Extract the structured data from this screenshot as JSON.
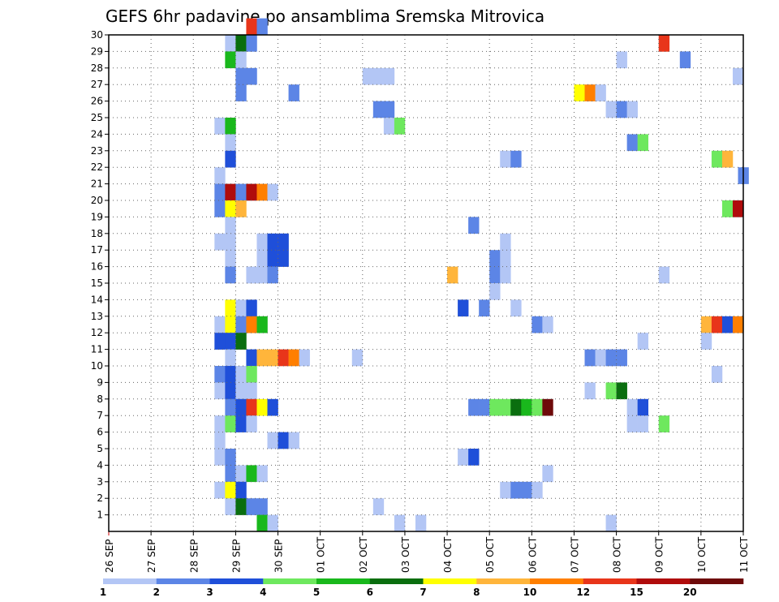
{
  "chart_data": {
    "type": "heatmap",
    "title": "GEFS 6hr padavine po ansamblima Sremska Mitrovica",
    "ylabel": "",
    "xlabel": "",
    "y_ticks": [
      "1",
      "2",
      "3",
      "4",
      "5",
      "6",
      "7",
      "8",
      "9",
      "10",
      "11",
      "12",
      "13",
      "14",
      "15",
      "16",
      "17",
      "18",
      "19",
      "20",
      "21",
      "22",
      "23",
      "24",
      "25",
      "26",
      "27",
      "28",
      "29",
      "30"
    ],
    "ylim": [
      0,
      30
    ],
    "x_ticks": [
      "26 SEP",
      "27 SEP",
      "28 SEP",
      "29 SEP",
      "30 SEP",
      "01 OCT",
      "02 OCT",
      "03 OCT",
      "04 OCT",
      "05 OCT",
      "06 OCT",
      "07 OCT",
      "08 OCT",
      "09 OCT",
      "10 OCT",
      "11 OCT"
    ],
    "x_unit": "6-hour step from 26 SEP 00Z",
    "xlim": [
      0,
      60
    ],
    "grid": true,
    "colorbar": {
      "ticks": [
        "1",
        "2",
        "3",
        "4",
        "5",
        "6",
        "7",
        "8",
        "10",
        "12",
        "15",
        "20"
      ],
      "colors": [
        "#b3c6f5",
        "#5c85e6",
        "#1f4fd9",
        "#6ee85e",
        "#19b81c",
        "#0a6e0f",
        "#ffff00",
        "#ffb53b",
        "#ff7f00",
        "#e8351a",
        "#b00c0c",
        "#6e0a0a"
      ]
    },
    "cells": [
      {
        "m": 30,
        "t": 13,
        "c": "#e8351a"
      },
      {
        "m": 30,
        "t": 14,
        "c": "#5c85e6"
      },
      {
        "m": 29,
        "t": 11,
        "c": "#b3c6f5"
      },
      {
        "m": 29,
        "t": 12,
        "c": "#0a6e0f"
      },
      {
        "m": 29,
        "t": 13,
        "c": "#5c85e6"
      },
      {
        "m": 29,
        "t": 52,
        "c": "#e8351a"
      },
      {
        "m": 28,
        "t": 11,
        "c": "#19b81c"
      },
      {
        "m": 28,
        "t": 12,
        "c": "#b3c6f5"
      },
      {
        "m": 28,
        "t": 48,
        "c": "#b3c6f5"
      },
      {
        "m": 28,
        "t": 54,
        "c": "#5c85e6"
      },
      {
        "m": 27,
        "t": 12,
        "c": "#5c85e6"
      },
      {
        "m": 27,
        "t": 13,
        "c": "#5c85e6"
      },
      {
        "m": 27,
        "t": 24,
        "c": "#b3c6f5"
      },
      {
        "m": 27,
        "t": 25,
        "c": "#b3c6f5"
      },
      {
        "m": 27,
        "t": 26,
        "c": "#b3c6f5"
      },
      {
        "m": 27,
        "t": 59,
        "c": "#b3c6f5"
      },
      {
        "m": 26,
        "t": 12,
        "c": "#5c85e6"
      },
      {
        "m": 26,
        "t": 17,
        "c": "#5c85e6"
      },
      {
        "m": 26,
        "t": 44,
        "c": "#ffff00"
      },
      {
        "m": 26,
        "t": 45,
        "c": "#ff7f00"
      },
      {
        "m": 26,
        "t": 46,
        "c": "#b3c6f5"
      },
      {
        "m": 25,
        "t": 25,
        "c": "#5c85e6"
      },
      {
        "m": 25,
        "t": 26,
        "c": "#5c85e6"
      },
      {
        "m": 25,
        "t": 47,
        "c": "#b3c6f5"
      },
      {
        "m": 25,
        "t": 48,
        "c": "#5c85e6"
      },
      {
        "m": 25,
        "t": 49,
        "c": "#b3c6f5"
      },
      {
        "m": 24,
        "t": 10,
        "c": "#b3c6f5"
      },
      {
        "m": 24,
        "t": 11,
        "c": "#19b81c"
      },
      {
        "m": 24,
        "t": 26,
        "c": "#b3c6f5"
      },
      {
        "m": 24,
        "t": 27,
        "c": "#6ee85e"
      },
      {
        "m": 23,
        "t": 11,
        "c": "#b3c6f5"
      },
      {
        "m": 23,
        "t": 49,
        "c": "#5c85e6"
      },
      {
        "m": 23,
        "t": 50,
        "c": "#6ee85e"
      },
      {
        "m": 22,
        "t": 11,
        "c": "#1f4fd9"
      },
      {
        "m": 22,
        "t": 37,
        "c": "#b3c6f5"
      },
      {
        "m": 22,
        "t": 38,
        "c": "#5c85e6"
      },
      {
        "m": 22,
        "t": 57,
        "c": "#6ee85e"
      },
      {
        "m": 22,
        "t": 58,
        "c": "#ffb53b"
      },
      {
        "m": 21,
        "t": 10,
        "c": "#b3c6f5"
      },
      {
        "m": 21,
        "t": 59.5,
        "c": "#5c85e6"
      },
      {
        "m": 20,
        "t": 10,
        "c": "#5c85e6"
      },
      {
        "m": 20,
        "t": 11,
        "c": "#b00c0c"
      },
      {
        "m": 20,
        "t": 12,
        "c": "#5c85e6"
      },
      {
        "m": 20,
        "t": 13,
        "c": "#b00c0c"
      },
      {
        "m": 20,
        "t": 14,
        "c": "#ff7f00"
      },
      {
        "m": 20,
        "t": 15,
        "c": "#b3c6f5"
      },
      {
        "m": 19,
        "t": 10,
        "c": "#5c85e6"
      },
      {
        "m": 19,
        "t": 11,
        "c": "#ffff00"
      },
      {
        "m": 19,
        "t": 12,
        "c": "#ffb53b"
      },
      {
        "m": 19,
        "t": 58,
        "c": "#6ee85e"
      },
      {
        "m": 19,
        "t": 59,
        "c": "#b00c0c"
      },
      {
        "m": 18,
        "t": 11,
        "c": "#b3c6f5"
      },
      {
        "m": 18,
        "t": 34,
        "c": "#5c85e6"
      },
      {
        "m": 17,
        "t": 10,
        "c": "#b3c6f5"
      },
      {
        "m": 17,
        "t": 11,
        "c": "#b3c6f5"
      },
      {
        "m": 17,
        "t": 14,
        "c": "#b3c6f5"
      },
      {
        "m": 17,
        "t": 15,
        "c": "#1f4fd9"
      },
      {
        "m": 17,
        "t": 16,
        "c": "#1f4fd9"
      },
      {
        "m": 17,
        "t": 37,
        "c": "#b3c6f5"
      },
      {
        "m": 16,
        "t": 11,
        "c": "#b3c6f5"
      },
      {
        "m": 16,
        "t": 14,
        "c": "#b3c6f5"
      },
      {
        "m": 16,
        "t": 15,
        "c": "#1f4fd9"
      },
      {
        "m": 16,
        "t": 16,
        "c": "#1f4fd9"
      },
      {
        "m": 16,
        "t": 36,
        "c": "#5c85e6"
      },
      {
        "m": 16,
        "t": 37,
        "c": "#b3c6f5"
      },
      {
        "m": 15,
        "t": 11,
        "c": "#5c85e6"
      },
      {
        "m": 15,
        "t": 13,
        "c": "#b3c6f5"
      },
      {
        "m": 15,
        "t": 14,
        "c": "#b3c6f5"
      },
      {
        "m": 15,
        "t": 15,
        "c": "#5c85e6"
      },
      {
        "m": 15,
        "t": 32,
        "c": "#ffb53b"
      },
      {
        "m": 15,
        "t": 36,
        "c": "#5c85e6"
      },
      {
        "m": 15,
        "t": 37,
        "c": "#b3c6f5"
      },
      {
        "m": 15,
        "t": 52,
        "c": "#b3c6f5"
      },
      {
        "m": 14,
        "t": 36,
        "c": "#b3c6f5"
      },
      {
        "m": 13,
        "t": 11,
        "c": "#ffff00"
      },
      {
        "m": 13,
        "t": 12,
        "c": "#b3c6f5"
      },
      {
        "m": 13,
        "t": 13,
        "c": "#1f4fd9"
      },
      {
        "m": 13,
        "t": 33,
        "c": "#1f4fd9"
      },
      {
        "m": 13,
        "t": 35,
        "c": "#5c85e6"
      },
      {
        "m": 13,
        "t": 38,
        "c": "#b3c6f5"
      },
      {
        "m": 12,
        "t": 10,
        "c": "#b3c6f5"
      },
      {
        "m": 12,
        "t": 11,
        "c": "#ffff00"
      },
      {
        "m": 12,
        "t": 12,
        "c": "#5c85e6"
      },
      {
        "m": 12,
        "t": 13,
        "c": "#ff7f00"
      },
      {
        "m": 12,
        "t": 14,
        "c": "#19b81c"
      },
      {
        "m": 12,
        "t": 40,
        "c": "#5c85e6"
      },
      {
        "m": 12,
        "t": 41,
        "c": "#b3c6f5"
      },
      {
        "m": 12,
        "t": 56,
        "c": "#ffb53b"
      },
      {
        "m": 12,
        "t": 57,
        "c": "#e8351a"
      },
      {
        "m": 12,
        "t": 58,
        "c": "#1f4fd9"
      },
      {
        "m": 12,
        "t": 59,
        "c": "#ff7f00"
      },
      {
        "m": 11,
        "t": 10,
        "c": "#1f4fd9"
      },
      {
        "m": 11,
        "t": 11,
        "c": "#1f4fd9"
      },
      {
        "m": 11,
        "t": 12,
        "c": "#0a6e0f"
      },
      {
        "m": 11,
        "t": 50,
        "c": "#b3c6f5"
      },
      {
        "m": 11,
        "t": 56,
        "c": "#b3c6f5"
      },
      {
        "m": 10,
        "t": 11,
        "c": "#b3c6f5"
      },
      {
        "m": 10,
        "t": 13,
        "c": "#1f4fd9"
      },
      {
        "m": 10,
        "t": 14,
        "c": "#ffb53b"
      },
      {
        "m": 10,
        "t": 15,
        "c": "#ffb53b"
      },
      {
        "m": 10,
        "t": 16,
        "c": "#e8351a"
      },
      {
        "m": 10,
        "t": 17,
        "c": "#ff7f00"
      },
      {
        "m": 10,
        "t": 18,
        "c": "#b3c6f5"
      },
      {
        "m": 10,
        "t": 23,
        "c": "#b3c6f5"
      },
      {
        "m": 10,
        "t": 45,
        "c": "#5c85e6"
      },
      {
        "m": 10,
        "t": 46,
        "c": "#b3c6f5"
      },
      {
        "m": 10,
        "t": 47,
        "c": "#5c85e6"
      },
      {
        "m": 10,
        "t": 48,
        "c": "#5c85e6"
      },
      {
        "m": 9,
        "t": 10,
        "c": "#5c85e6"
      },
      {
        "m": 9,
        "t": 11,
        "c": "#1f4fd9"
      },
      {
        "m": 9,
        "t": 12,
        "c": "#b3c6f5"
      },
      {
        "m": 9,
        "t": 13,
        "c": "#6ee85e"
      },
      {
        "m": 9,
        "t": 57,
        "c": "#b3c6f5"
      },
      {
        "m": 8,
        "t": 10,
        "c": "#b3c6f5"
      },
      {
        "m": 8,
        "t": 11,
        "c": "#1f4fd9"
      },
      {
        "m": 8,
        "t": 12,
        "c": "#b3c6f5"
      },
      {
        "m": 8,
        "t": 13,
        "c": "#b3c6f5"
      },
      {
        "m": 8,
        "t": 45,
        "c": "#b3c6f5"
      },
      {
        "m": 8,
        "t": 47,
        "c": "#6ee85e"
      },
      {
        "m": 8,
        "t": 48,
        "c": "#0a6e0f"
      },
      {
        "m": 7,
        "t": 11,
        "c": "#5c85e6"
      },
      {
        "m": 7,
        "t": 12,
        "c": "#1f4fd9"
      },
      {
        "m": 7,
        "t": 13,
        "c": "#e8351a"
      },
      {
        "m": 7,
        "t": 14,
        "c": "#ffff00"
      },
      {
        "m": 7,
        "t": 15,
        "c": "#1f4fd9"
      },
      {
        "m": 7,
        "t": 34,
        "c": "#5c85e6"
      },
      {
        "m": 7,
        "t": 35,
        "c": "#5c85e6"
      },
      {
        "m": 7,
        "t": 36,
        "c": "#6ee85e"
      },
      {
        "m": 7,
        "t": 37,
        "c": "#6ee85e"
      },
      {
        "m": 7,
        "t": 38,
        "c": "#0a6e0f"
      },
      {
        "m": 7,
        "t": 39,
        "c": "#19b81c"
      },
      {
        "m": 7,
        "t": 40,
        "c": "#6ee85e"
      },
      {
        "m": 7,
        "t": 41,
        "c": "#6e0a0a"
      },
      {
        "m": 7,
        "t": 49,
        "c": "#b3c6f5"
      },
      {
        "m": 7,
        "t": 50,
        "c": "#1f4fd9"
      },
      {
        "m": 6,
        "t": 10,
        "c": "#b3c6f5"
      },
      {
        "m": 6,
        "t": 11,
        "c": "#6ee85e"
      },
      {
        "m": 6,
        "t": 12,
        "c": "#1f4fd9"
      },
      {
        "m": 6,
        "t": 13,
        "c": "#b3c6f5"
      },
      {
        "m": 6,
        "t": 49,
        "c": "#b3c6f5"
      },
      {
        "m": 6,
        "t": 50,
        "c": "#b3c6f5"
      },
      {
        "m": 6,
        "t": 52,
        "c": "#6ee85e"
      },
      {
        "m": 5,
        "t": 10,
        "c": "#b3c6f5"
      },
      {
        "m": 5,
        "t": 15,
        "c": "#b3c6f5"
      },
      {
        "m": 5,
        "t": 16,
        "c": "#1f4fd9"
      },
      {
        "m": 5,
        "t": 17,
        "c": "#b3c6f5"
      },
      {
        "m": 4,
        "t": 10,
        "c": "#b3c6f5"
      },
      {
        "m": 4,
        "t": 11,
        "c": "#5c85e6"
      },
      {
        "m": 4,
        "t": 33,
        "c": "#b3c6f5"
      },
      {
        "m": 4,
        "t": 34,
        "c": "#1f4fd9"
      },
      {
        "m": 3,
        "t": 11,
        "c": "#5c85e6"
      },
      {
        "m": 3,
        "t": 12,
        "c": "#b3c6f5"
      },
      {
        "m": 3,
        "t": 13,
        "c": "#19b81c"
      },
      {
        "m": 3,
        "t": 14,
        "c": "#b3c6f5"
      },
      {
        "m": 3,
        "t": 41,
        "c": "#b3c6f5"
      },
      {
        "m": 2,
        "t": 10,
        "c": "#b3c6f5"
      },
      {
        "m": 2,
        "t": 11,
        "c": "#ffff00"
      },
      {
        "m": 2,
        "t": 12,
        "c": "#1f4fd9"
      },
      {
        "m": 2,
        "t": 37,
        "c": "#b3c6f5"
      },
      {
        "m": 2,
        "t": 38,
        "c": "#5c85e6"
      },
      {
        "m": 2,
        "t": 39,
        "c": "#5c85e6"
      },
      {
        "m": 2,
        "t": 40,
        "c": "#b3c6f5"
      },
      {
        "m": 1,
        "t": 11,
        "c": "#b3c6f5"
      },
      {
        "m": 1,
        "t": 12,
        "c": "#0a6e0f"
      },
      {
        "m": 1,
        "t": 13,
        "c": "#5c85e6"
      },
      {
        "m": 1,
        "t": 14,
        "c": "#5c85e6"
      },
      {
        "m": 1,
        "t": 25,
        "c": "#b3c6f5"
      },
      {
        "m": 0,
        "t": 14,
        "c": "#19b81c"
      },
      {
        "m": 0,
        "t": 15,
        "c": "#b3c6f5"
      },
      {
        "m": 0,
        "t": 27,
        "c": "#b3c6f5"
      },
      {
        "m": 0,
        "t": 29,
        "c": "#b3c6f5"
      },
      {
        "m": 0,
        "t": 47,
        "c": "#b3c6f5"
      }
    ]
  }
}
